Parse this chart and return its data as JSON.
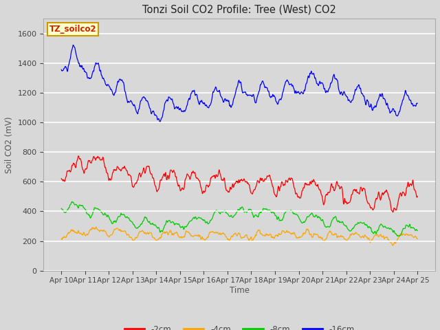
{
  "title": "Tonzi Soil CO2 Profile: Tree (West) CO2",
  "xlabel": "Time",
  "ylabel": "Soil CO2 (mV)",
  "watermark": "TZ_soilco2",
  "background_color": "#d8d8d8",
  "ylim": [
    0,
    1700
  ],
  "yticks": [
    0,
    200,
    400,
    600,
    800,
    1000,
    1200,
    1400,
    1600
  ],
  "legend_colors": [
    "#ff0000",
    "#ffa500",
    "#00cc00",
    "#0000ff"
  ],
  "legend_labels": [
    "-2cm",
    "-4cm",
    "-8cm",
    "-16cm"
  ]
}
